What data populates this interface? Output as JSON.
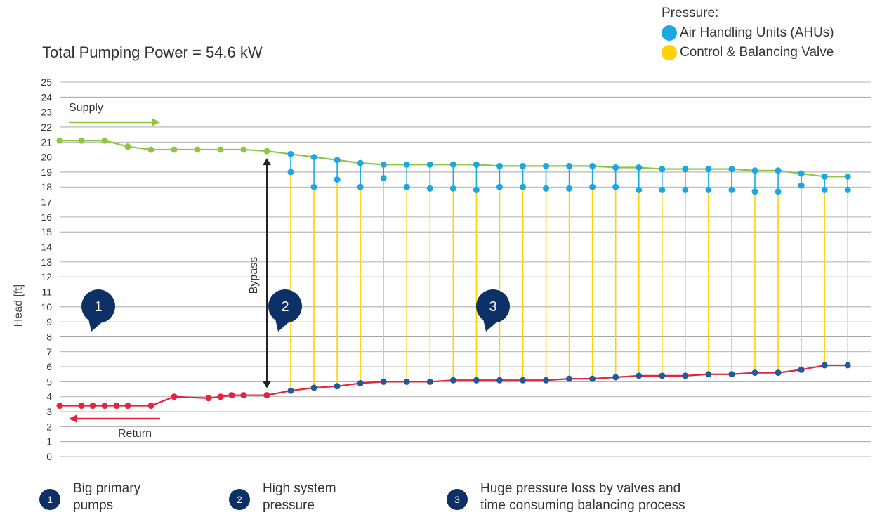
{
  "header": {
    "power_text": "Total Pumping Power = 54.6 kW"
  },
  "legend": {
    "title": "Pressure:",
    "items": [
      {
        "label": "Air Handling Units (AHUs)",
        "color": "#1aa7e2"
      },
      {
        "label": "Control & Balancing Valve",
        "color": "#ffd200"
      }
    ]
  },
  "chart_data": {
    "type": "line",
    "ylabel": "Head [ft]",
    "ylim": [
      0,
      25
    ],
    "yticks": [
      "0",
      "1",
      "2",
      "3",
      "4",
      "5",
      "6",
      "7",
      "8",
      "9",
      "10",
      "11",
      "12",
      "13",
      "14",
      "15",
      "16",
      "17",
      "18",
      "19",
      "20",
      "21",
      "22",
      "23",
      "24",
      "25"
    ],
    "grid": true,
    "series": [
      {
        "name": "Supply",
        "color": "#8dc63f",
        "values": [
          21.1,
          21.1,
          21.1,
          20.7,
          20.5,
          20.5,
          20.5,
          20.5,
          20.5,
          20.4,
          20.2,
          20.0,
          19.8,
          19.6,
          19.5,
          19.5,
          19.5,
          19.5,
          19.5,
          19.4,
          19.4,
          19.4,
          19.4,
          19.4,
          19.3,
          19.3,
          19.2,
          19.2,
          19.2,
          19.2,
          19.1,
          19.1,
          18.9,
          18.7,
          18.7
        ]
      },
      {
        "name": "Return",
        "color": "#e4233c",
        "values": [
          3.4,
          3.4,
          3.4,
          3.4,
          3.4,
          3.4,
          3.4,
          4.0,
          3.9,
          4.0,
          4.1,
          4.1,
          4.1,
          4.4,
          4.6,
          4.7,
          4.9,
          5.0,
          5.0,
          5.0,
          5.1,
          5.1,
          5.1,
          5.1,
          5.1,
          5.2,
          5.2,
          5.3,
          5.4,
          5.4,
          5.4,
          5.5,
          5.5,
          5.6,
          5.6,
          5.8,
          6.1,
          6.1
        ]
      }
    ],
    "units": [
      {
        "supply": 20.2,
        "ahu": 19.0,
        "ret": 4.4
      },
      {
        "supply": 20.0,
        "ahu": 18.0,
        "ret": 4.6
      },
      {
        "supply": 19.8,
        "ahu": 18.5,
        "ret": 4.7
      },
      {
        "supply": 19.6,
        "ahu": 18.0,
        "ret": 4.9
      },
      {
        "supply": 19.5,
        "ahu": 18.6,
        "ret": 5.0
      },
      {
        "supply": 19.5,
        "ahu": 18.0,
        "ret": 5.0
      },
      {
        "supply": 19.5,
        "ahu": 17.9,
        "ret": 5.0
      },
      {
        "supply": 19.5,
        "ahu": 17.9,
        "ret": 5.0
      },
      {
        "supply": 19.5,
        "ahu": 17.8,
        "ret": 5.1
      },
      {
        "supply": 19.4,
        "ahu": 18.0,
        "ret": 5.1
      },
      {
        "supply": 19.4,
        "ahu": 18.0,
        "ret": 5.1
      },
      {
        "supply": 19.4,
        "ahu": 17.9,
        "ret": 5.2
      },
      {
        "supply": 19.4,
        "ahu": 17.9,
        "ret": 5.2
      },
      {
        "supply": 19.4,
        "ahu": 18.0,
        "ret": 5.2
      },
      {
        "supply": 19.3,
        "ahu": 18.0,
        "ret": 5.2
      },
      {
        "supply": 19.3,
        "ahu": 17.8,
        "ret": 5.3
      },
      {
        "supply": 19.2,
        "ahu": 17.8,
        "ret": 5.4
      },
      {
        "supply": 19.2,
        "ahu": 17.8,
        "ret": 5.4
      },
      {
        "supply": 19.2,
        "ahu": 17.8,
        "ret": 5.5
      },
      {
        "supply": 19.2,
        "ahu": 17.8,
        "ret": 5.4
      },
      {
        "supply": 19.1,
        "ahu": 17.7,
        "ret": 5.6
      },
      {
        "supply": 19.1,
        "ahu": 17.7,
        "ret": 5.6
      },
      {
        "supply": 18.9,
        "ahu": 18.1,
        "ret": 5.8
      },
      {
        "supply": 18.7,
        "ahu": 17.8,
        "ret": 6.1
      },
      {
        "supply": 18.7,
        "ahu": 17.8,
        "ret": 6.1
      }
    ],
    "annotations": {
      "supply_label": "Supply",
      "return_label": "Return",
      "bypass_label": "Bypass"
    },
    "callouts": [
      "1",
      "2",
      "3"
    ]
  },
  "footnotes": [
    {
      "number": "1",
      "text": "Big primary\npumps"
    },
    {
      "number": "2",
      "text": "High system\npressure"
    },
    {
      "number": "3",
      "text": "Huge pressure loss by valves and\ntime consuming balancing process"
    }
  ]
}
